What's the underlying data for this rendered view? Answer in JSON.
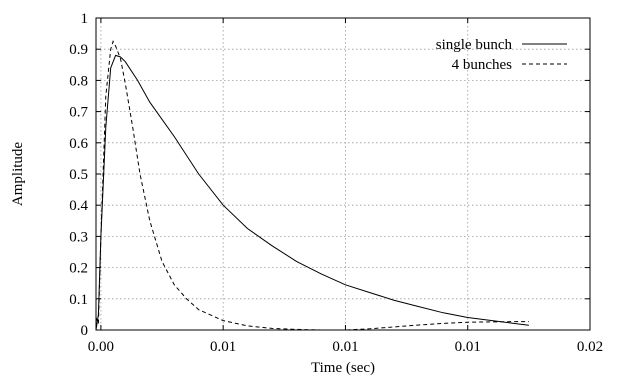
{
  "chart_data": {
    "type": "line",
    "xlabel": "Time (sec)",
    "ylabel": "Amplitude",
    "xlim": [
      -0.0002,
      0.02
    ],
    "ylim": [
      0,
      1
    ],
    "grid": true,
    "legend_position": "top-right",
    "x_ticks": [
      {
        "value": 0.0,
        "label": "0.00"
      },
      {
        "value": 0.005,
        "label": "0.01"
      },
      {
        "value": 0.01,
        "label": "0.01"
      },
      {
        "value": 0.015,
        "label": "0.01"
      },
      {
        "value": 0.02,
        "label": "0.02"
      }
    ],
    "y_ticks": [
      {
        "value": 0,
        "label": "0"
      },
      {
        "value": 0.1,
        "label": "0.1"
      },
      {
        "value": 0.2,
        "label": "0.2"
      },
      {
        "value": 0.3,
        "label": "0.3"
      },
      {
        "value": 0.4,
        "label": "0.4"
      },
      {
        "value": 0.5,
        "label": "0.5"
      },
      {
        "value": 0.6,
        "label": "0.6"
      },
      {
        "value": 0.7,
        "label": "0.7"
      },
      {
        "value": 0.8,
        "label": "0.8"
      },
      {
        "value": 0.9,
        "label": "0.9"
      },
      {
        "value": 1,
        "label": "1"
      }
    ],
    "series": [
      {
        "name": "single bunch",
        "style": "solid",
        "color": "#000000",
        "x": [
          -0.0002,
          -0.0001,
          0.0,
          0.0002,
          0.0004,
          0.0006,
          0.0008,
          0.001,
          0.0015,
          0.002,
          0.003,
          0.004,
          0.005,
          0.006,
          0.007,
          0.008,
          0.009,
          0.01,
          0.011,
          0.012,
          0.013,
          0.014,
          0.015,
          0.016,
          0.017,
          0.0175
        ],
        "y": [
          0.0,
          0.05,
          0.3,
          0.65,
          0.84,
          0.88,
          0.875,
          0.86,
          0.8,
          0.73,
          0.62,
          0.5,
          0.4,
          0.325,
          0.27,
          0.22,
          0.18,
          0.145,
          0.12,
          0.095,
          0.075,
          0.055,
          0.04,
          0.03,
          0.02,
          0.015
        ]
      },
      {
        "name": "4 bunches",
        "style": "dashed",
        "color": "#000000",
        "x": [
          -0.0002,
          -0.0001,
          0.0,
          0.0002,
          0.0004,
          0.0005,
          0.0006,
          0.0008,
          0.001,
          0.0013,
          0.0016,
          0.002,
          0.0025,
          0.003,
          0.0035,
          0.004,
          0.005,
          0.006,
          0.007,
          0.008,
          0.009,
          0.01,
          0.011,
          0.012,
          0.013,
          0.014,
          0.015,
          0.016,
          0.017,
          0.0175
        ],
        "y": [
          0.04,
          0.02,
          0.3,
          0.75,
          0.9,
          0.925,
          0.91,
          0.87,
          0.79,
          0.65,
          0.5,
          0.35,
          0.22,
          0.145,
          0.1,
          0.065,
          0.03,
          0.013,
          0.005,
          0.002,
          0.0,
          0.0,
          0.004,
          0.01,
          0.016,
          0.021,
          0.025,
          0.026,
          0.027,
          0.027
        ]
      }
    ]
  }
}
